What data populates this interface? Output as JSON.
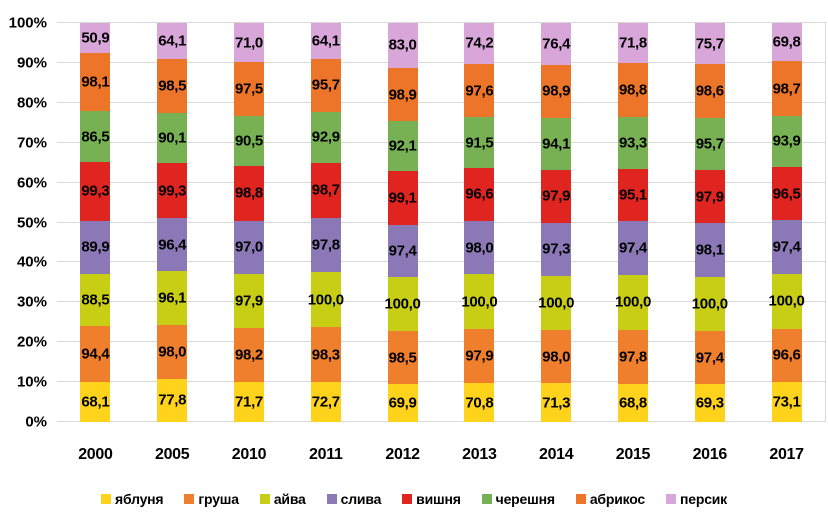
{
  "chart_data": {
    "type": "bar",
    "variant": "100-percent-stacked-column",
    "title": "",
    "background": "#FFFFFF",
    "grid_color": "#D9D9D9",
    "text_color": "#000000",
    "legend_position": "bottom",
    "categories": [
      "2000",
      "2005",
      "2010",
      "2011",
      "2012",
      "2013",
      "2014",
      "2015",
      "2016",
      "2017"
    ],
    "y_axis": {
      "min": 0,
      "max": 100,
      "step": 10,
      "ticks_bottom_to_top": [
        "0%",
        "10%",
        "20%",
        "30%",
        "40%",
        "50%",
        "60%",
        "70%",
        "80%",
        "90%",
        "100%"
      ]
    },
    "series": [
      {
        "name": "яблуня",
        "color": "#FFD31C",
        "labels": [
          "68,1",
          "77,8",
          "71,7",
          "72,7",
          "69,9",
          "70,8",
          "71,3",
          "68,8",
          "69,3",
          "73,1"
        ]
      },
      {
        "name": "груша",
        "color": "#EF7E2D",
        "labels": [
          "94,4",
          "98,0",
          "98,2",
          "98,3",
          "98,5",
          "97,9",
          "98,0",
          "97,8",
          "97,4",
          "96,6"
        ]
      },
      {
        "name": "айва",
        "color": "#C8CE14",
        "labels": [
          "88,5",
          "96,1",
          "97,9",
          "100,0",
          "100,0",
          "100,0",
          "100,0",
          "100,0",
          "100,0",
          "100,0"
        ]
      },
      {
        "name": "слива",
        "color": "#8B79B7",
        "labels": [
          "89,9",
          "96,4",
          "97,0",
          "97,8",
          "97,4",
          "98,0",
          "97,3",
          "97,4",
          "98,1",
          "97,4"
        ]
      },
      {
        "name": "вишня",
        "color": "#E02420",
        "labels": [
          "99,3",
          "99,3",
          "98,8",
          "98,7",
          "99,1",
          "96,6",
          "97,9",
          "95,1",
          "97,9",
          "96,5"
        ]
      },
      {
        "name": "черешня",
        "color": "#77B154",
        "labels": [
          "86,5",
          "90,1",
          "90,5",
          "92,9",
          "92,1",
          "91,5",
          "94,1",
          "93,3",
          "95,7",
          "93,9"
        ]
      },
      {
        "name": "абрикос",
        "color": "#ED7529",
        "labels": [
          "98,1",
          "98,5",
          "97,5",
          "95,7",
          "98,9",
          "97,6",
          "98,9",
          "98,8",
          "98,6",
          "98,7"
        ]
      },
      {
        "name": "персик",
        "color": "#D9A6D9",
        "labels": [
          "50,9",
          "64,1",
          "71,0",
          "64,1",
          "83,0",
          "74,2",
          "76,4",
          "71,8",
          "75,7",
          "69,8"
        ]
      }
    ]
  }
}
